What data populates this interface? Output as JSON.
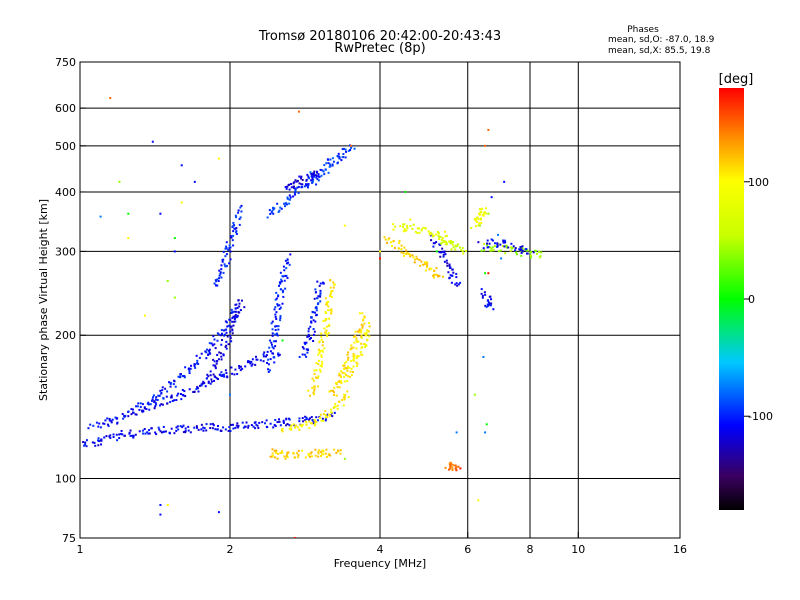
{
  "chart_data": {
    "type": "scatter",
    "title": "Tromsø 20180106 20:42:00-20:43:43",
    "subtitle": "RwPretec (8p)",
    "xlabel": "Frequency [MHz]",
    "ylabel": "Stationary phase Virtual Height [km]",
    "x_scale": "log",
    "y_scale": "log",
    "xlim": [
      1,
      16
    ],
    "ylim": [
      75,
      750
    ],
    "x_ticks": [
      1,
      2,
      4,
      6,
      8,
      10,
      16
    ],
    "x_ticklabels": [
      "1",
      "2",
      "4",
      "6",
      "8",
      "10",
      "16"
    ],
    "x_gridlines": [
      2,
      4,
      6,
      8,
      10
    ],
    "y_ticks": [
      75,
      100,
      200,
      300,
      400,
      500,
      600,
      750
    ],
    "y_ticklabels": [
      "75",
      "100",
      "200",
      "300",
      "400",
      "500",
      "600",
      "750"
    ],
    "y_gridlines": [
      100,
      200,
      300,
      400,
      500,
      600
    ],
    "grid": true,
    "phases_box": {
      "title": "Phases",
      "line1": "mean, sd,O:  -87.0,  18.9",
      "line2": "mean, sd,X:   85.5,  19.8"
    },
    "colorbar": {
      "label": "[deg]",
      "range": [
        -180,
        180
      ],
      "ticks": [
        100,
        0,
        -100
      ],
      "ticklabels": [
        "100",
        "0",
        "-100"
      ],
      "colormap": "rainbow"
    },
    "traces": [
      {
        "note_phase": -110,
        "x": [
          1.0,
          1.1,
          1.25,
          1.45,
          1.65,
          1.85,
          2.0,
          2.3,
          2.6,
          2.9,
          3.2
        ],
        "y": [
          118,
          120,
          124,
          126,
          127,
          128,
          128,
          130,
          131,
          133,
          136
        ]
      },
      {
        "note_phase": -110,
        "x": [
          1.05,
          1.2,
          1.35,
          1.55,
          1.75,
          1.95,
          2.2,
          2.5
        ],
        "y": [
          128,
          134,
          140,
          148,
          156,
          165,
          175,
          185
        ]
      },
      {
        "note_phase": -105,
        "x": [
          1.3,
          1.45,
          1.6,
          1.8,
          1.95,
          2.1
        ],
        "y": [
          140,
          150,
          165,
          185,
          205,
          230
        ]
      },
      {
        "note_phase": -100,
        "x": [
          1.85,
          1.95,
          2.0,
          2.05,
          2.1
        ],
        "y": [
          250,
          280,
          310,
          340,
          370
        ]
      },
      {
        "note_phase": -115,
        "x": [
          1.8,
          1.9,
          2.0,
          2.05,
          2.1
        ],
        "y": [
          160,
          180,
          200,
          220,
          240
        ]
      },
      {
        "note_phase": -95,
        "x": [
          2.4,
          2.5,
          2.6,
          2.7,
          2.8,
          2.9,
          3.0,
          3.1,
          3.2,
          3.3,
          3.4,
          3.5
        ],
        "y": [
          360,
          370,
          385,
          400,
          410,
          420,
          430,
          445,
          460,
          470,
          480,
          500
        ]
      },
      {
        "note_phase": -120,
        "x": [
          2.6,
          2.7,
          2.8,
          2.9,
          3.0
        ],
        "y": [
          405,
          415,
          425,
          430,
          440
        ]
      },
      {
        "note_phase": -100,
        "x": [
          2.4,
          2.45,
          2.5,
          2.55,
          2.6
        ],
        "y": [
          170,
          200,
          230,
          260,
          290
        ]
      },
      {
        "note_phase": -105,
        "x": [
          2.8,
          2.9,
          2.95,
          3.0,
          3.05
        ],
        "y": [
          180,
          200,
          220,
          240,
          260
        ]
      },
      {
        "note_phase": 100,
        "x": [
          2.55,
          2.7,
          2.85,
          3.0,
          3.15,
          3.3,
          3.45
        ],
        "y": [
          127,
          128,
          130,
          133,
          137,
          143,
          150
        ]
      },
      {
        "note_phase": 105,
        "x": [
          2.9,
          3.0,
          3.05,
          3.1,
          3.15,
          3.2
        ],
        "y": [
          150,
          165,
          185,
          205,
          230,
          260
        ]
      },
      {
        "note_phase": 110,
        "x": [
          3.2,
          3.3,
          3.4,
          3.5,
          3.6,
          3.7
        ],
        "y": [
          150,
          160,
          170,
          180,
          200,
          220
        ]
      },
      {
        "note_phase": 100,
        "x": [
          3.4,
          3.5,
          3.6,
          3.7,
          3.75,
          3.8
        ],
        "y": [
          160,
          170,
          180,
          190,
          200,
          210
        ]
      },
      {
        "note_phase": 115,
        "x": [
          4.1,
          4.3,
          4.5,
          4.7,
          4.9,
          5.1,
          5.3
        ],
        "y": [
          320,
          310,
          300,
          290,
          280,
          272,
          265
        ]
      },
      {
        "note_phase": -115,
        "x": [
          5.1,
          5.3,
          5.5,
          5.6,
          5.7
        ],
        "y": [
          320,
          300,
          280,
          265,
          255
        ]
      },
      {
        "note_phase": 80,
        "x": [
          4.3,
          4.6,
          4.9,
          5.2,
          5.5
        ],
        "y": [
          340,
          335,
          330,
          325,
          315
        ]
      },
      {
        "note_phase": 60,
        "x": [
          5.3,
          5.5,
          5.7,
          5.9
        ],
        "y": [
          320,
          310,
          305,
          300
        ]
      },
      {
        "note_phase": 40,
        "x": [
          6.4,
          6.8,
          7.2,
          7.6,
          8.0,
          8.4
        ],
        "y": [
          305,
          305,
          302,
          300,
          297,
          295
        ]
      },
      {
        "note_phase": -110,
        "x": [
          6.4,
          6.8,
          7.2,
          7.6,
          8.0
        ],
        "y": [
          310,
          312,
          310,
          306,
          300
        ]
      },
      {
        "note_phase": 115,
        "x": [
          2.4,
          2.5,
          2.6,
          3.0,
          3.1,
          3.3
        ],
        "y": [
          113,
          112,
          112,
          113,
          113,
          113
        ]
      },
      {
        "note_phase": 150,
        "x": [
          5.5,
          5.6,
          5.65
        ],
        "y": [
          106,
          106,
          106
        ]
      },
      {
        "note_phase": -110,
        "x": [
          6.5,
          6.6,
          6.7
        ],
        "y": [
          245,
          235,
          230
        ]
      },
      {
        "note_phase": 90,
        "x": [
          6.2,
          6.3,
          6.4,
          6.5
        ],
        "y": [
          340,
          350,
          360,
          370
        ]
      }
    ],
    "sparse": [
      {
        "note_phase": 150,
        "x": [
          1.15,
          2.75,
          3.5,
          6.6,
          6.5
        ],
        "y": [
          630,
          590,
          500,
          540,
          500
        ]
      },
      {
        "note_phase": -105,
        "x": [
          1.4,
          1.6,
          1.45,
          1.7,
          1.55,
          6.4,
          6.7,
          7.1,
          1.45,
          1.45,
          1.9
        ],
        "y": [
          510,
          455,
          360,
          420,
          300,
          250,
          390,
          420,
          88,
          84,
          85
        ]
      },
      {
        "note_phase": 100,
        "x": [
          1.9,
          1.25,
          1.35,
          1.6,
          3.4,
          6.3,
          4.6,
          5.4,
          4.0,
          1.5
        ],
        "y": [
          470,
          320,
          220,
          380,
          340,
          90,
          350,
          330,
          300,
          88
        ]
      },
      {
        "note_phase": 40,
        "x": [
          1.2,
          1.5,
          6.2,
          6.35,
          3.4,
          1.55,
          6.6
        ],
        "y": [
          420,
          260,
          150,
          340,
          110,
          240,
          360
        ]
      },
      {
        "note_phase": 0,
        "x": [
          1.25,
          1.55,
          2.55,
          5.2,
          6.5,
          6.55,
          4.5
        ],
        "y": [
          360,
          320,
          195,
          300,
          270,
          130,
          400
        ]
      },
      {
        "note_phase": -75,
        "x": [
          1.1,
          2.0,
          2.9,
          5.7,
          6.45,
          6.5,
          7.0,
          6.9
        ],
        "y": [
          355,
          150,
          440,
          125,
          180,
          125,
          290,
          325
        ]
      },
      {
        "note_phase": 175,
        "x": [
          2.7,
          4.0,
          5.8,
          6.6
        ],
        "y": [
          75,
          290,
          105,
          270
        ]
      }
    ]
  }
}
